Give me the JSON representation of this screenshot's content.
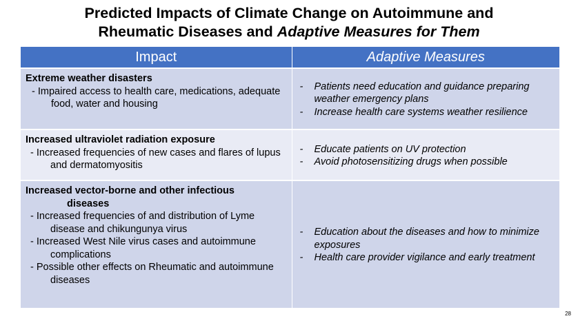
{
  "title": {
    "line1": "Predicted Impacts of Climate Change on Autoimmune and",
    "line2_regular": "Rheumatic Diseases and ",
    "line2_italic": "Adaptive Measures for Them"
  },
  "table": {
    "headers": {
      "impact": "Impact",
      "adaptive": "Adaptive Measures"
    },
    "rows": [
      {
        "impact_heading": "Extreme weather disasters",
        "impacts": [
          "- Impaired access to health care, medications, adequate food, water and housing"
        ],
        "measures": [
          "Patients need education and guidance preparing weather emergency plans",
          "Increase health care systems weather resilience"
        ]
      },
      {
        "impact_heading": "Increased ultraviolet radiation exposure",
        "impacts": [
          "- Increased frequencies of new cases and flares of lupus and dermatomyositis"
        ],
        "measures": [
          "Educate patients on UV protection",
          "Avoid photosensitizing drugs when possible"
        ]
      },
      {
        "impact_heading_line1": "Increased vector-borne and other infectious",
        "impact_heading_line2": "diseases",
        "impacts": [
          "- Increased frequencies of and distribution of Lyme disease and chikungunya virus",
          "- Increased West Nile virus cases and autoimmune complications",
          "- Possible other effects on Rheumatic and autoimmune diseases"
        ],
        "measures": [
          "Education about the diseases and how to minimize exposures",
          "Health care provider vigilance and early treatment"
        ]
      }
    ],
    "measure_dash": "-"
  },
  "page_number": "28"
}
